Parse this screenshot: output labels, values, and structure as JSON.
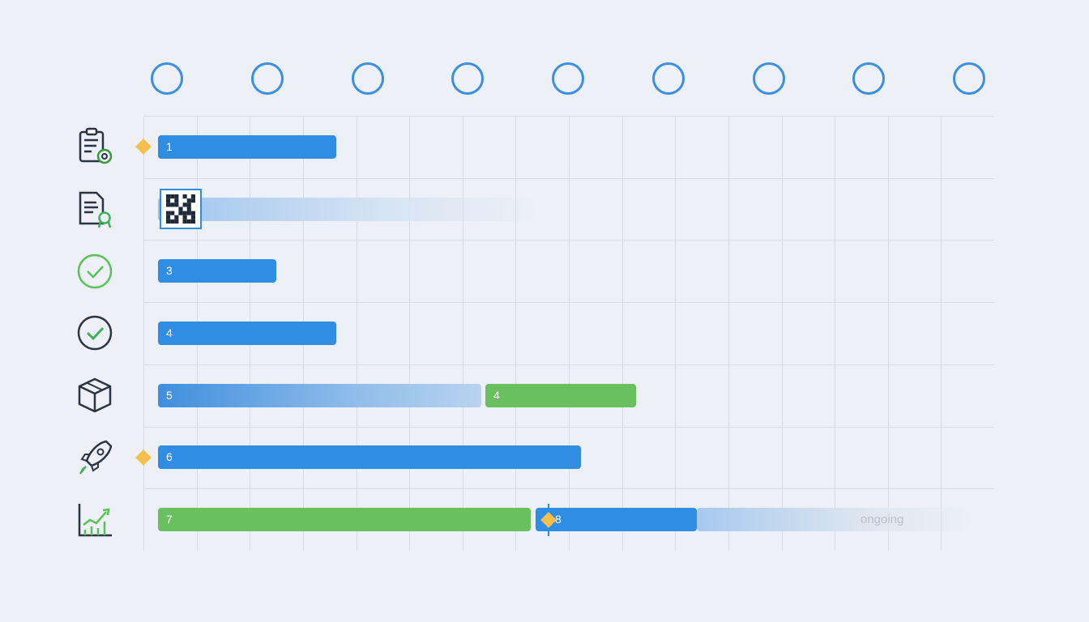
{
  "chart_data": {
    "type": "gantt",
    "columns": 9,
    "grid": {
      "cols": 16,
      "rows": 7
    },
    "rows": [
      {
        "icon": "clipboard-gear-icon",
        "milestone": true,
        "bars": [
          {
            "label": "1",
            "start": 0.27,
            "end": 3.62,
            "style": "solid",
            "color": "blue"
          }
        ]
      },
      {
        "icon": "certificate-document-icon",
        "milestone": false,
        "qr_badge": true,
        "bars": [
          {
            "label": "",
            "start": 0.27,
            "end": 7.4,
            "style": "fading",
            "color": "blue"
          }
        ]
      },
      {
        "icon": "check-circle-green-icon",
        "milestone": false,
        "bars": [
          {
            "label": "3",
            "start": 0.27,
            "end": 2.5,
            "style": "solid",
            "color": "blue"
          }
        ]
      },
      {
        "icon": "check-circle-icon",
        "milestone": false,
        "bars": [
          {
            "label": "4",
            "start": 0.27,
            "end": 3.62,
            "style": "solid",
            "color": "blue"
          }
        ]
      },
      {
        "icon": "box-icon",
        "milestone": false,
        "bars": [
          {
            "label": "5",
            "start": 0.27,
            "end": 6.35,
            "style": "gradient",
            "color": "blue"
          },
          {
            "label": "4",
            "start": 6.43,
            "end": 9.27,
            "style": "solid",
            "color": "green"
          }
        ]
      },
      {
        "icon": "rocket-icon",
        "milestone": true,
        "bars": [
          {
            "label": "6",
            "start": 0.27,
            "end": 8.22,
            "style": "solid",
            "color": "blue"
          }
        ]
      },
      {
        "icon": "growth-chart-icon",
        "milestone": false,
        "bars": [
          {
            "label": "7",
            "start": 0.27,
            "end": 7.28,
            "style": "solid",
            "color": "green"
          },
          {
            "label": "8",
            "start": 7.37,
            "end": 10.4,
            "style": "solid",
            "color": "blue",
            "milestone": true
          },
          {
            "label": "",
            "start": 10.4,
            "end": 16.5,
            "style": "fading",
            "color": "blue",
            "status": "ongoing"
          }
        ]
      }
    ],
    "colors": {
      "blue": "#2f8ee3",
      "green": "#68c15e",
      "milestone": "#f4c04b",
      "circle": "#3a8fde"
    }
  }
}
